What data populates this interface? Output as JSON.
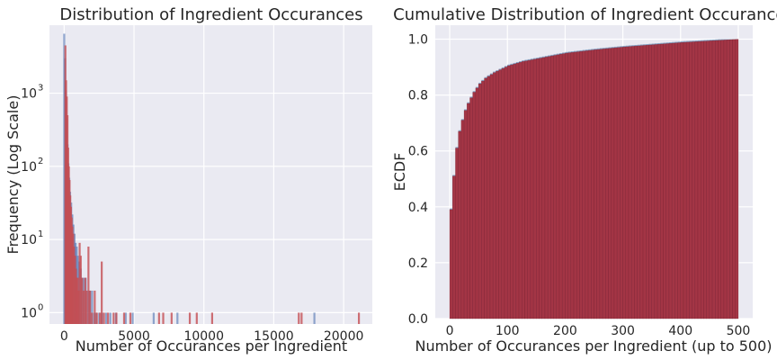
{
  "chart_data": [
    {
      "type": "bar",
      "title": "Distribution of Ingredient Occurances",
      "xlabel": "Number of Occurances per Ingredient",
      "ylabel": "Frequency (Log Scale)",
      "xlim": [
        -1050,
        22050
      ],
      "ylim": [
        0.7,
        8500
      ],
      "yscale": "log",
      "grid": true,
      "xticks": [
        0,
        5000,
        10000,
        15000,
        20000
      ],
      "xtick_labels": [
        "0",
        "5000",
        "10000",
        "15000",
        "20000"
      ],
      "yticks": [
        1,
        10,
        100,
        1000
      ],
      "ytick_labels": [
        "10",
        "10",
        "10",
        "10"
      ],
      "ytick_exponents": [
        "0",
        "1",
        "2",
        "3"
      ],
      "series": [
        {
          "color": "#4c72b0",
          "bars": [
            [
              0,
              6500
            ],
            [
              60,
              3000
            ],
            [
              120,
              1100
            ],
            [
              180,
              450
            ],
            [
              240,
              200
            ],
            [
              300,
              110
            ],
            [
              360,
              70
            ],
            [
              420,
              45
            ],
            [
              500,
              32
            ],
            [
              580,
              22
            ],
            [
              660,
              16
            ],
            [
              740,
              12
            ],
            [
              820,
              9
            ],
            [
              900,
              8
            ],
            [
              980,
              6
            ],
            [
              1080,
              5
            ],
            [
              1180,
              4
            ],
            [
              1280,
              3
            ],
            [
              1400,
              3
            ],
            [
              1540,
              3
            ],
            [
              1700,
              2
            ],
            [
              1850,
              2
            ],
            [
              2000,
              2
            ],
            [
              2150,
              1
            ],
            [
              2300,
              1
            ],
            [
              2500,
              1
            ],
            [
              2700,
              1
            ],
            [
              3000,
              1
            ],
            [
              3300,
              1
            ],
            [
              3700,
              1
            ],
            [
              4400,
              1
            ],
            [
              4900,
              1
            ],
            [
              6400,
              1
            ],
            [
              8100,
              1
            ],
            [
              17900,
              1
            ]
          ]
        },
        {
          "color": "#c44e52",
          "bars": [
            [
              0,
              4500
            ],
            [
              50,
              1500
            ],
            [
              100,
              900
            ],
            [
              150,
              500
            ],
            [
              200,
              180
            ],
            [
              250,
              100
            ],
            [
              300,
              65
            ],
            [
              350,
              40
            ],
            [
              400,
              28
            ],
            [
              450,
              20
            ],
            [
              500,
              15
            ],
            [
              560,
              12
            ],
            [
              620,
              8
            ],
            [
              700,
              6
            ],
            [
              760,
              4
            ],
            [
              820,
              3
            ],
            [
              880,
              3
            ],
            [
              950,
              2
            ],
            [
              1020,
              9
            ],
            [
              1100,
              6
            ],
            [
              1200,
              3
            ],
            [
              1300,
              2
            ],
            [
              1420,
              3
            ],
            [
              1500,
              2
            ],
            [
              1650,
              8
            ],
            [
              1760,
              2
            ],
            [
              1900,
              1
            ],
            [
              2100,
              2
            ],
            [
              2250,
              1
            ],
            [
              2480,
              1
            ],
            [
              2600,
              5
            ],
            [
              2760,
              1
            ],
            [
              3050,
              1
            ],
            [
              3450,
              1
            ],
            [
              3650,
              1
            ],
            [
              4200,
              1
            ],
            [
              4650,
              1
            ],
            [
              6700,
              1
            ],
            [
              7000,
              1
            ],
            [
              7600,
              1
            ],
            [
              8900,
              1
            ],
            [
              9400,
              1
            ],
            [
              10500,
              1
            ],
            [
              16700,
              1
            ],
            [
              16900,
              1
            ],
            [
              21000,
              1
            ]
          ]
        }
      ]
    },
    {
      "type": "bar",
      "title": "Cumulative Distribution of Ingredient Occurances",
      "xlabel": "Number of Occurances per Ingredient (up to 500)",
      "ylabel": "ECDF",
      "xlim": [
        -25,
        525
      ],
      "ylim": [
        0,
        1.05
      ],
      "grid": true,
      "xticks": [
        0,
        100,
        200,
        300,
        400,
        500
      ],
      "xtick_labels": [
        "0",
        "100",
        "200",
        "300",
        "400",
        "500"
      ],
      "yticks": [
        0,
        0.2,
        0.4,
        0.6,
        0.8,
        1.0
      ],
      "ytick_labels": [
        "0.0",
        "0.2",
        "0.4",
        "0.6",
        "0.8",
        "1.0"
      ],
      "bin_width": 5,
      "ecdf_anchor_points": [
        [
          0,
          0.39
        ],
        [
          5,
          0.51
        ],
        [
          10,
          0.61
        ],
        [
          15,
          0.67
        ],
        [
          20,
          0.71
        ],
        [
          25,
          0.745
        ],
        [
          30,
          0.77
        ],
        [
          40,
          0.81
        ],
        [
          50,
          0.84
        ],
        [
          60,
          0.86
        ],
        [
          75,
          0.88
        ],
        [
          100,
          0.905
        ],
        [
          125,
          0.92
        ],
        [
          150,
          0.93
        ],
        [
          200,
          0.95
        ],
        [
          250,
          0.962
        ],
        [
          300,
          0.972
        ],
        [
          350,
          0.98
        ],
        [
          400,
          0.988
        ],
        [
          450,
          0.994
        ],
        [
          500,
          1.0
        ]
      ],
      "series": [
        {
          "color": "#a33545"
        },
        {
          "color": "#6f8fb5"
        }
      ]
    }
  ]
}
